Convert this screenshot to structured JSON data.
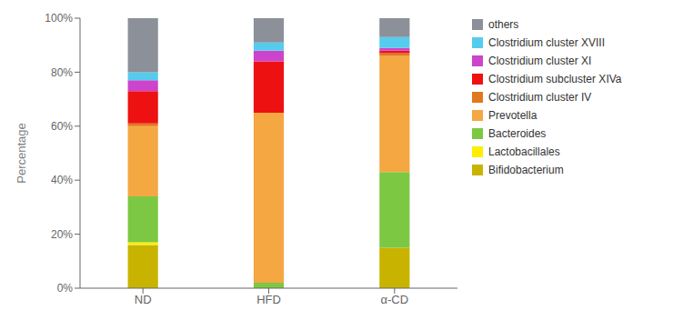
{
  "chart_data": {
    "type": "bar",
    "stacked": true,
    "grid": false,
    "legend": "right",
    "ylabel": "Percentage",
    "categories": [
      "ND",
      "HFD",
      "α-CD"
    ],
    "series": [
      {
        "name": "Bifidobacterium",
        "color": "#C8B400",
        "values": [
          16,
          0,
          15
        ]
      },
      {
        "name": "Lactobacillales",
        "color": "#FFEE00",
        "values": [
          1,
          0,
          0
        ]
      },
      {
        "name": "Bacteroides",
        "color": "#7DC843",
        "values": [
          17,
          2,
          28
        ]
      },
      {
        "name": "Prevotella",
        "color": "#F5A742",
        "values": [
          26,
          63,
          43
        ]
      },
      {
        "name": "Clostridium cluster IV",
        "color": "#E07820",
        "values": [
          1,
          0,
          1
        ]
      },
      {
        "name": "Clostridium subcluster XIVa",
        "color": "#EE1111",
        "values": [
          12,
          19,
          1
        ]
      },
      {
        "name": "Clostridium cluster XI",
        "color": "#CC44CC",
        "values": [
          4,
          4,
          1
        ]
      },
      {
        "name": "Clostridium cluster XVIII",
        "color": "#55CCEE",
        "values": [
          3,
          3,
          4
        ]
      },
      {
        "name": "others",
        "color": "#8C9099",
        "values": [
          20,
          9,
          7
        ]
      }
    ],
    "ylim": [
      0,
      100
    ],
    "yticks": [
      {
        "value": 0,
        "label": "0%"
      },
      {
        "value": 20,
        "label": "20%"
      },
      {
        "value": 40,
        "label": "40%"
      },
      {
        "value": 60,
        "label": "60%"
      },
      {
        "value": 80,
        "label": "80%"
      },
      {
        "value": 100,
        "label": "100%"
      }
    ]
  }
}
